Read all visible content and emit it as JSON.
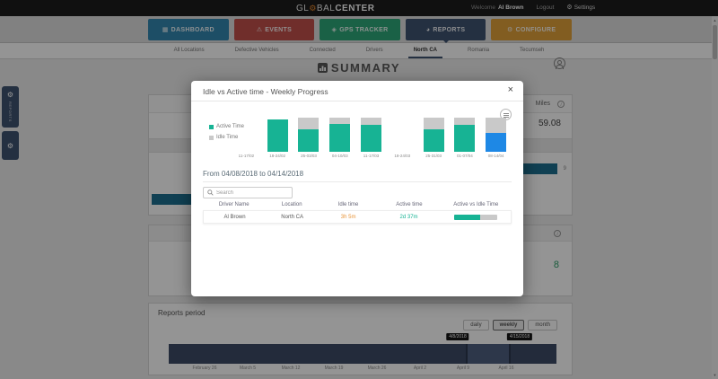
{
  "colors": {
    "accent_green": "#17b394",
    "idle_gray": "#c9c9c9",
    "highlight_blue": "#1e88e5",
    "navy": "#3f5370",
    "idle_text_orange": "#e8953a",
    "timeline_navy": "#3d4b66",
    "logo_gear_orange": "#e8882d"
  },
  "icons": {
    "dashboard": "▦",
    "events": "⚠",
    "gps": "◈",
    "reports": "◕",
    "configure": "⚙",
    "gear": "⚙",
    "info": "i",
    "scroll_up": "▲",
    "scroll_down": "▼",
    "close": "×",
    "flyout": "⚙"
  },
  "topbar": {
    "logo_left": "GL",
    "logo_mid": "BAL",
    "logo_bold": "CENTER",
    "welcome_label": "Welcome",
    "username": "Al Brown",
    "logout_label": "Logout",
    "settings_label": "Settings"
  },
  "nav": {
    "buttons": [
      {
        "label": "DASHBOARD",
        "color": "#3387b0",
        "icon": "dashboard",
        "active": false
      },
      {
        "label": "EVENTS",
        "color": "#c2504b",
        "icon": "events",
        "active": false
      },
      {
        "label": "GPS TRACKER",
        "color": "#2ea879",
        "icon": "gps",
        "active": false
      },
      {
        "label": "REPORTS",
        "color": "#3f5370",
        "icon": "reports",
        "active": true
      },
      {
        "label": "CONFIGURE",
        "color": "#e0a13a",
        "icon": "configure",
        "active": false
      }
    ]
  },
  "subtabs": {
    "items": [
      "All Locations",
      "Defective Vehicles",
      "Connected",
      "Drivers",
      "North CA",
      "Romania",
      "Tecumseh"
    ],
    "active_index": 4
  },
  "page": {
    "title": "SUMMARY"
  },
  "flyout": {
    "label": "REPORTS"
  },
  "widgets": {
    "miles_label": "Miles",
    "miles_value": "59.08",
    "bar_value": "9",
    "events_value": "8"
  },
  "reports_period": {
    "title": "Reports period",
    "range_buttons": [
      "daily",
      "weekly",
      "month"
    ],
    "active_button": "weekly",
    "tooltips": [
      "4/8/2018",
      "4/15/2018"
    ],
    "dates": [
      "February 26",
      "March 5",
      "March 12",
      "March 19",
      "March 26",
      "April 2",
      "April 9",
      "April 16"
    ]
  },
  "modal": {
    "title": "Idle vs Active time - Weekly Progress",
    "range_text": "From 04/08/2018 to 04/14/2018",
    "search_placeholder": "Search",
    "table": {
      "headers": [
        "Driver Name",
        "Location",
        "Idle time",
        "Active time",
        "Active vs Idle Time"
      ],
      "rows": [
        {
          "driver": "Al Brown",
          "location": "North CA",
          "idle_time": "3h 5m",
          "active_time": "2d 37m",
          "active_pct": 62
        }
      ]
    }
  },
  "chart_data": {
    "type": "bar",
    "stacked": true,
    "title": "Idle vs Active time - Weekly Progress",
    "categories": [
      "11-17/02",
      "18-24/02",
      "25-03/03",
      "04-10/03",
      "11-17/03",
      "18-24/03",
      "25-31/03",
      "01-07/04",
      "08-14/04"
    ],
    "series": [
      {
        "name": "Active Time",
        "color": "#17b394",
        "values": [
          0,
          95,
          67,
          82,
          80,
          0,
          67,
          78,
          55
        ]
      },
      {
        "name": "Idle Time",
        "color": "#c9c9c9",
        "values": [
          0,
          0,
          33,
          18,
          20,
          0,
          33,
          22,
          45
        ]
      }
    ],
    "values_unit": "relative column height, percent",
    "highlight_index": 8,
    "highlight_color": "#1e88e5",
    "legend_position": "left",
    "axes_hidden": true
  }
}
